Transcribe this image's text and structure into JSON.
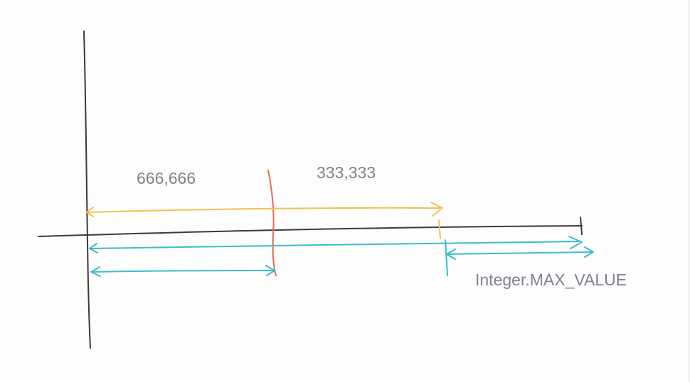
{
  "labels": {
    "left_segment": "666,666",
    "middle_segment": "333,333",
    "max_value": "Integer.MAX_VALUE"
  },
  "colors": {
    "axis": "#3a3a3a",
    "orange": "#f2c14e",
    "red": "#e36a55",
    "teal": "#3bbdc8",
    "label": "#7d838c"
  }
}
